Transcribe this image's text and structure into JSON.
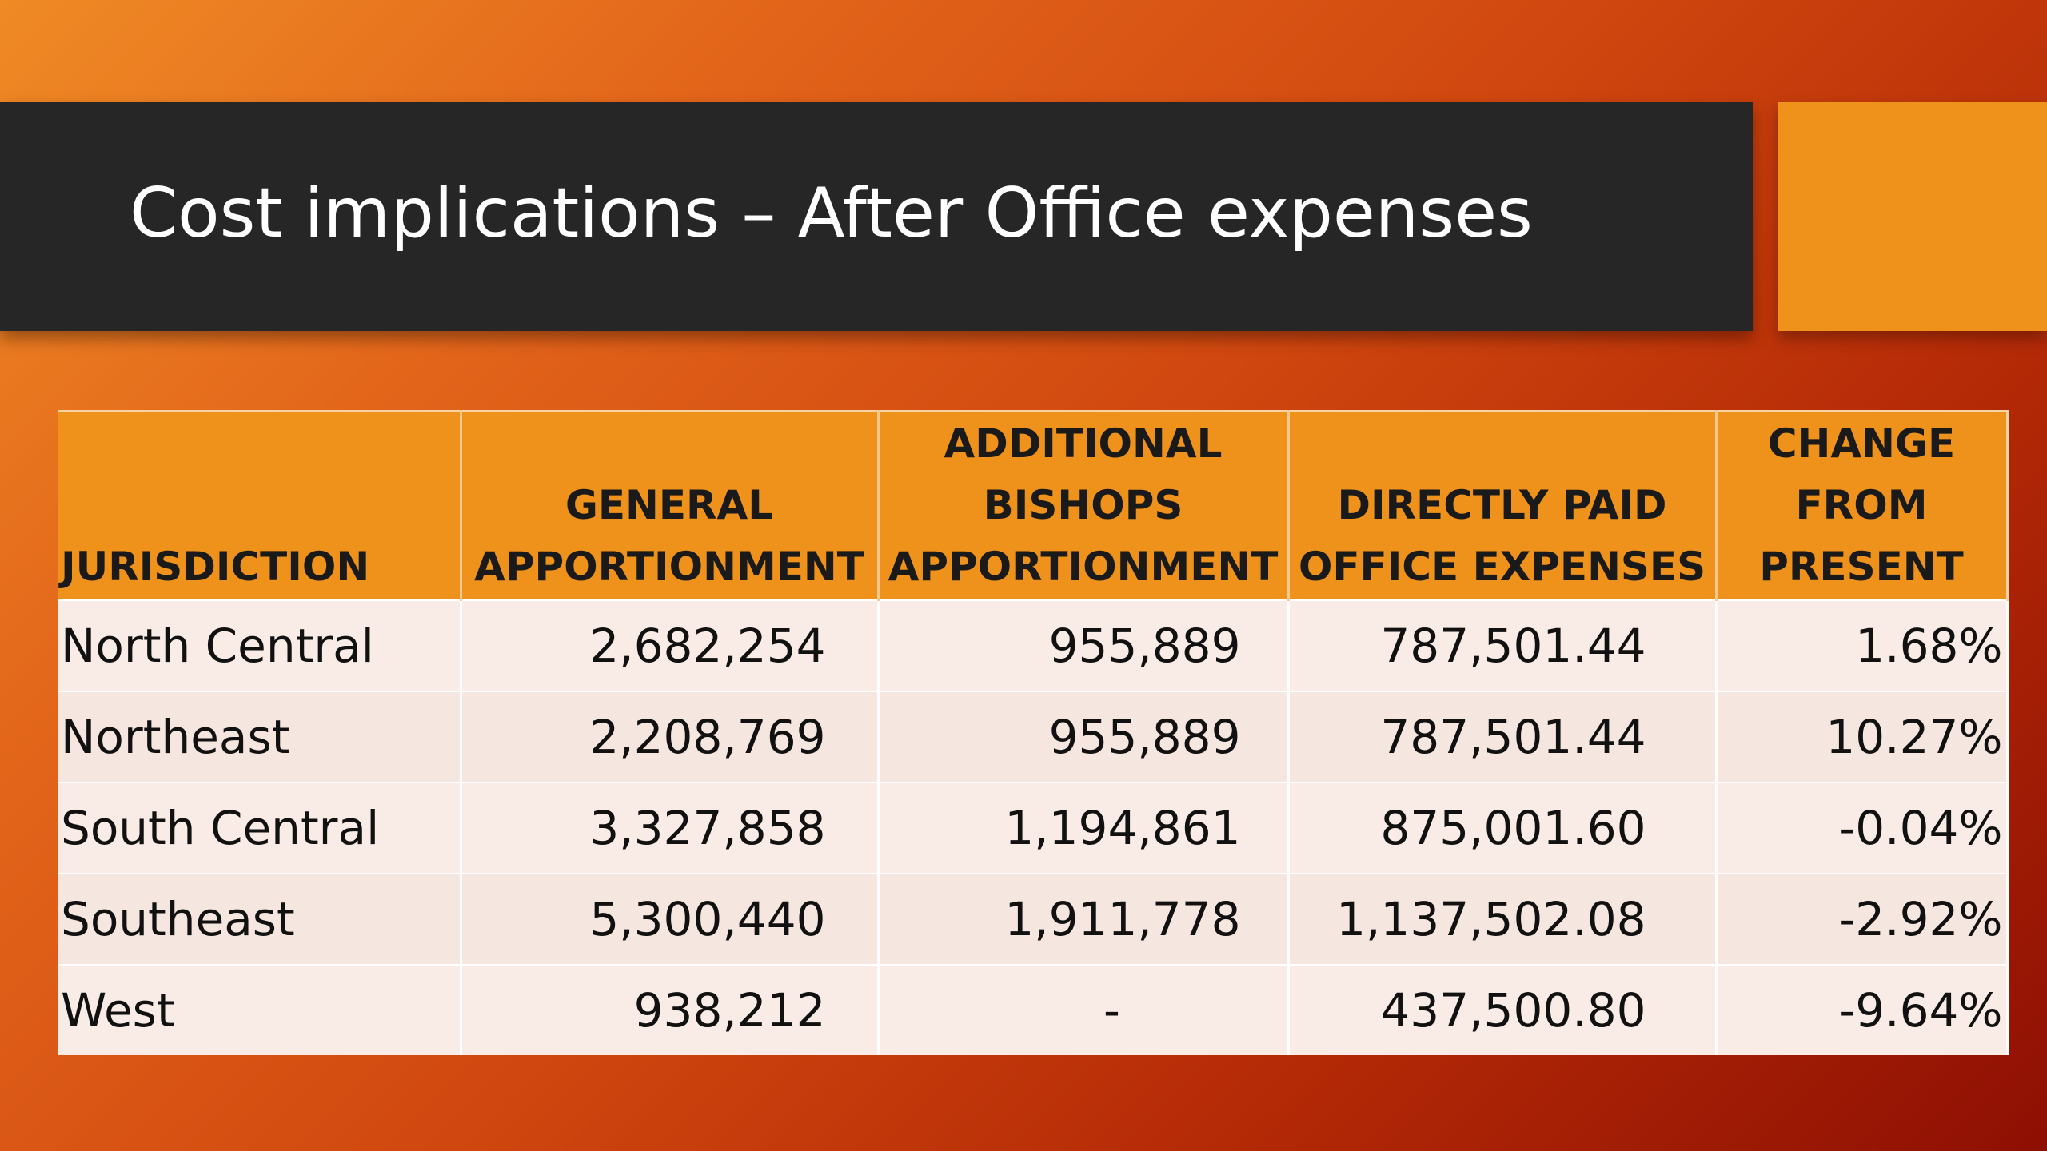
{
  "slide": {
    "title": "Cost implications – After Office expenses"
  },
  "table": {
    "headers": [
      [
        "JURISDICTION"
      ],
      [
        "GENERAL",
        "APPORTIONMENT"
      ],
      [
        "ADDITIONAL",
        "BISHOPS",
        "APPORTIONMENT"
      ],
      [
        "DIRECTLY PAID",
        "OFFICE EXPENSES"
      ],
      [
        "CHANGE",
        "FROM",
        "PRESENT"
      ]
    ],
    "rows": [
      [
        "North Central",
        "2,682,254",
        "955,889",
        "787,501.44",
        "1.68%"
      ],
      [
        "Northeast",
        "2,208,769",
        "955,889",
        "787,501.44",
        "10.27%"
      ],
      [
        "South Central",
        "3,327,858",
        "1,194,861",
        "875,001.60",
        "-0.04%"
      ],
      [
        "Southeast",
        "5,300,440",
        "1,911,778",
        "1,137,502.08",
        "-2.92%"
      ],
      [
        "West",
        "938,212",
        "-",
        "437,500.80",
        "-9.64%"
      ]
    ]
  },
  "colors": {
    "title_bar": "#262626",
    "accent": "#ee921c",
    "header_fill": "#ee921c",
    "row_fill": "#f9ece6",
    "background_start": "#ef8a25",
    "background_end": "#8e0f03"
  }
}
